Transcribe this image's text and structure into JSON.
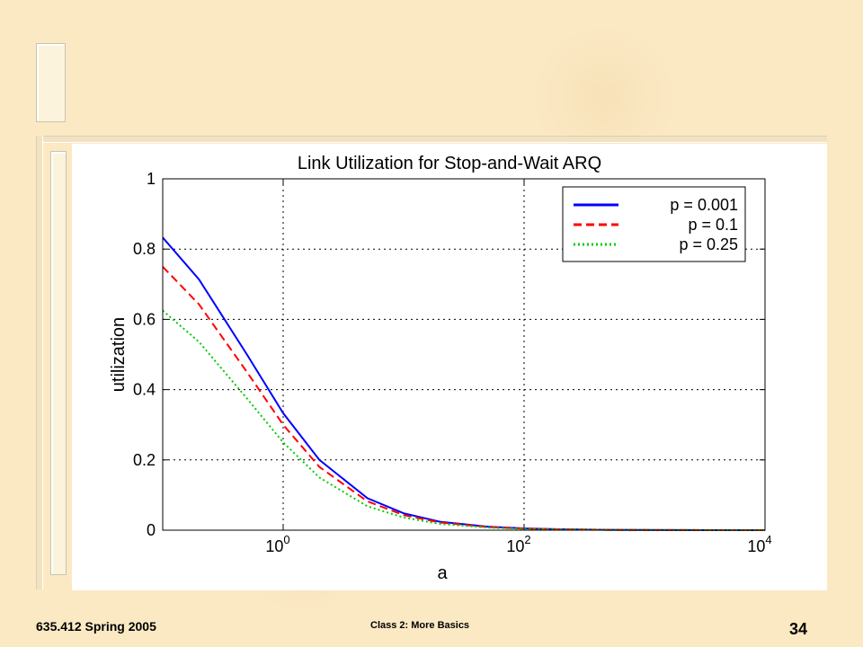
{
  "slide": {
    "course": "635.412 Spring 2005",
    "class_title": "Class 2: More Basics",
    "page_number": "34"
  },
  "chart_data": {
    "type": "line",
    "title": "Link Utilization for Stop-and-Wait ARQ",
    "xlabel": "a",
    "ylabel": "utilization",
    "x_scale": "log",
    "xlim": [
      0.1,
      10000
    ],
    "ylim": [
      0,
      1
    ],
    "x_ticks": [
      {
        "value": 1,
        "base": "10",
        "exp": "0"
      },
      {
        "value": 100,
        "base": "10",
        "exp": "2"
      },
      {
        "value": 10000,
        "base": "10",
        "exp": "4"
      }
    ],
    "y_ticks": [
      {
        "value": 0,
        "label": "0"
      },
      {
        "value": 0.2,
        "label": "0.2"
      },
      {
        "value": 0.4,
        "label": "0.4"
      },
      {
        "value": 0.6,
        "label": "0.6"
      },
      {
        "value": 0.8,
        "label": "0.8"
      },
      {
        "value": 1,
        "label": "1"
      }
    ],
    "grid": true,
    "legend_position": "top-right",
    "x": [
      0.1,
      0.2,
      0.5,
      1,
      2,
      5,
      10,
      20,
      50,
      100,
      200,
      500,
      1000,
      2000,
      5000,
      10000
    ],
    "series": [
      {
        "name": "p = 0.001",
        "color": "#0000ff",
        "dash": "solid",
        "values": [
          0.833,
          0.714,
          0.5,
          0.333,
          0.2,
          0.091,
          0.048,
          0.024,
          0.01,
          0.005,
          0.0025,
          0.001,
          0.0005,
          0.00025,
          0.0001,
          5e-05
        ]
      },
      {
        "name": "p = 0.1",
        "color": "#ff0000",
        "dash": "dashed",
        "values": [
          0.75,
          0.643,
          0.45,
          0.3,
          0.18,
          0.082,
          0.043,
          0.022,
          0.009,
          0.0045,
          0.0022,
          0.0009,
          0.00045,
          0.00022,
          9e-05,
          4.5e-05
        ]
      },
      {
        "name": "p = 0.25",
        "color": "#00cc00",
        "dash": "dotted",
        "values": [
          0.625,
          0.536,
          0.375,
          0.25,
          0.15,
          0.068,
          0.036,
          0.018,
          0.0074,
          0.0037,
          0.0019,
          0.00075,
          0.00037,
          0.00019,
          7.5e-05,
          3.7e-05
        ]
      }
    ]
  }
}
